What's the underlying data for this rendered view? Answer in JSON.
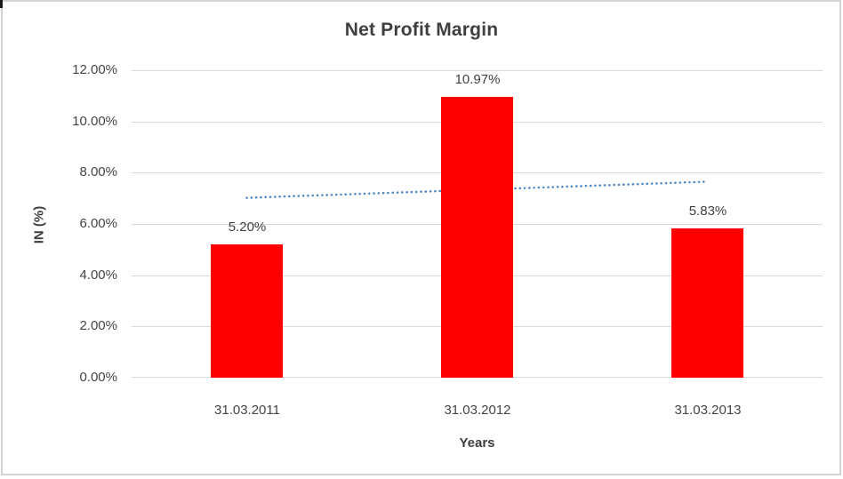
{
  "chart_data": {
    "type": "bar",
    "title": "Net Profit Margin",
    "categories": [
      "31.03.2011",
      "31.03.2012",
      "31.03.2013"
    ],
    "values": [
      5.2,
      10.97,
      5.83
    ],
    "data_labels": [
      "5.20%",
      "10.97%",
      "5.83%"
    ],
    "xlabel": "Years",
    "ylabel": "IN (%)",
    "ylim": [
      0,
      12
    ],
    "ytick_values": [
      0,
      2,
      4,
      6,
      8,
      10,
      12
    ],
    "ytick_labels": [
      "0.00%",
      "2.00%",
      "4.00%",
      "6.00%",
      "8.00%",
      "10.00%",
      "12.00%"
    ],
    "grid": true,
    "legend": "none",
    "bar_color": "#FF0000",
    "trendline": {
      "type": "linear",
      "style": "dotted",
      "color": "#4E87C6",
      "start_value": 7.02,
      "end_value": 7.65
    },
    "style_colors": {
      "gridline": "#D9D9D9",
      "axis_line": "#D9D9D9",
      "text": "#404040",
      "frame_border": "#D3D3D3"
    }
  }
}
